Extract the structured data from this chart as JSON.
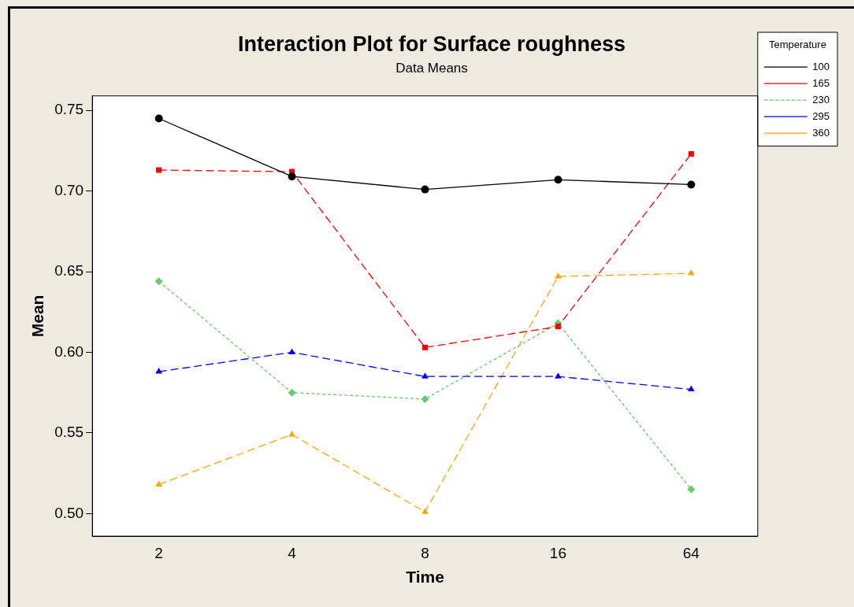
{
  "chart_data": {
    "type": "line",
    "title": "Interaction Plot for Surface roughness",
    "subtitle": "Data Means",
    "xlabel": "Time",
    "ylabel": "Mean",
    "legend_title": "Temperature",
    "legend": "top right",
    "grid": false,
    "categories": [
      "2",
      "4",
      "8",
      "16",
      "64"
    ],
    "ylim": [
      0.486,
      0.759
    ],
    "yticks": [
      {
        "value": 0.5,
        "label": "0.50"
      },
      {
        "value": 0.55,
        "label": "0.55"
      },
      {
        "value": 0.6,
        "label": "0.60"
      },
      {
        "value": 0.65,
        "label": "0.65"
      },
      {
        "value": 0.7,
        "label": "0.70"
      },
      {
        "value": 0.75,
        "label": "0.75"
      }
    ],
    "series": [
      {
        "name": "100",
        "color": "#000000",
        "marker": "circle",
        "line_style": "solid",
        "values": [
          0.745,
          0.709,
          0.701,
          0.707,
          0.704
        ]
      },
      {
        "name": "165",
        "color": "#ff0000",
        "marker": "square",
        "line_style": "dashed",
        "values": [
          0.713,
          0.712,
          0.603,
          0.616,
          0.723
        ]
      },
      {
        "name": "230",
        "color": "#66cc66",
        "marker": "diamond",
        "line_style": "dotted",
        "values": [
          0.644,
          0.575,
          0.571,
          0.618,
          0.515
        ]
      },
      {
        "name": "295",
        "color": "#0000ff",
        "marker": "triangle",
        "line_style": "dashed",
        "values": [
          0.588,
          0.6,
          0.585,
          0.585,
          0.577
        ]
      },
      {
        "name": "360",
        "color": "#ffa500",
        "marker": "triangle",
        "line_style": "dashed",
        "values": [
          0.518,
          0.549,
          0.501,
          0.647,
          0.649
        ]
      }
    ]
  }
}
